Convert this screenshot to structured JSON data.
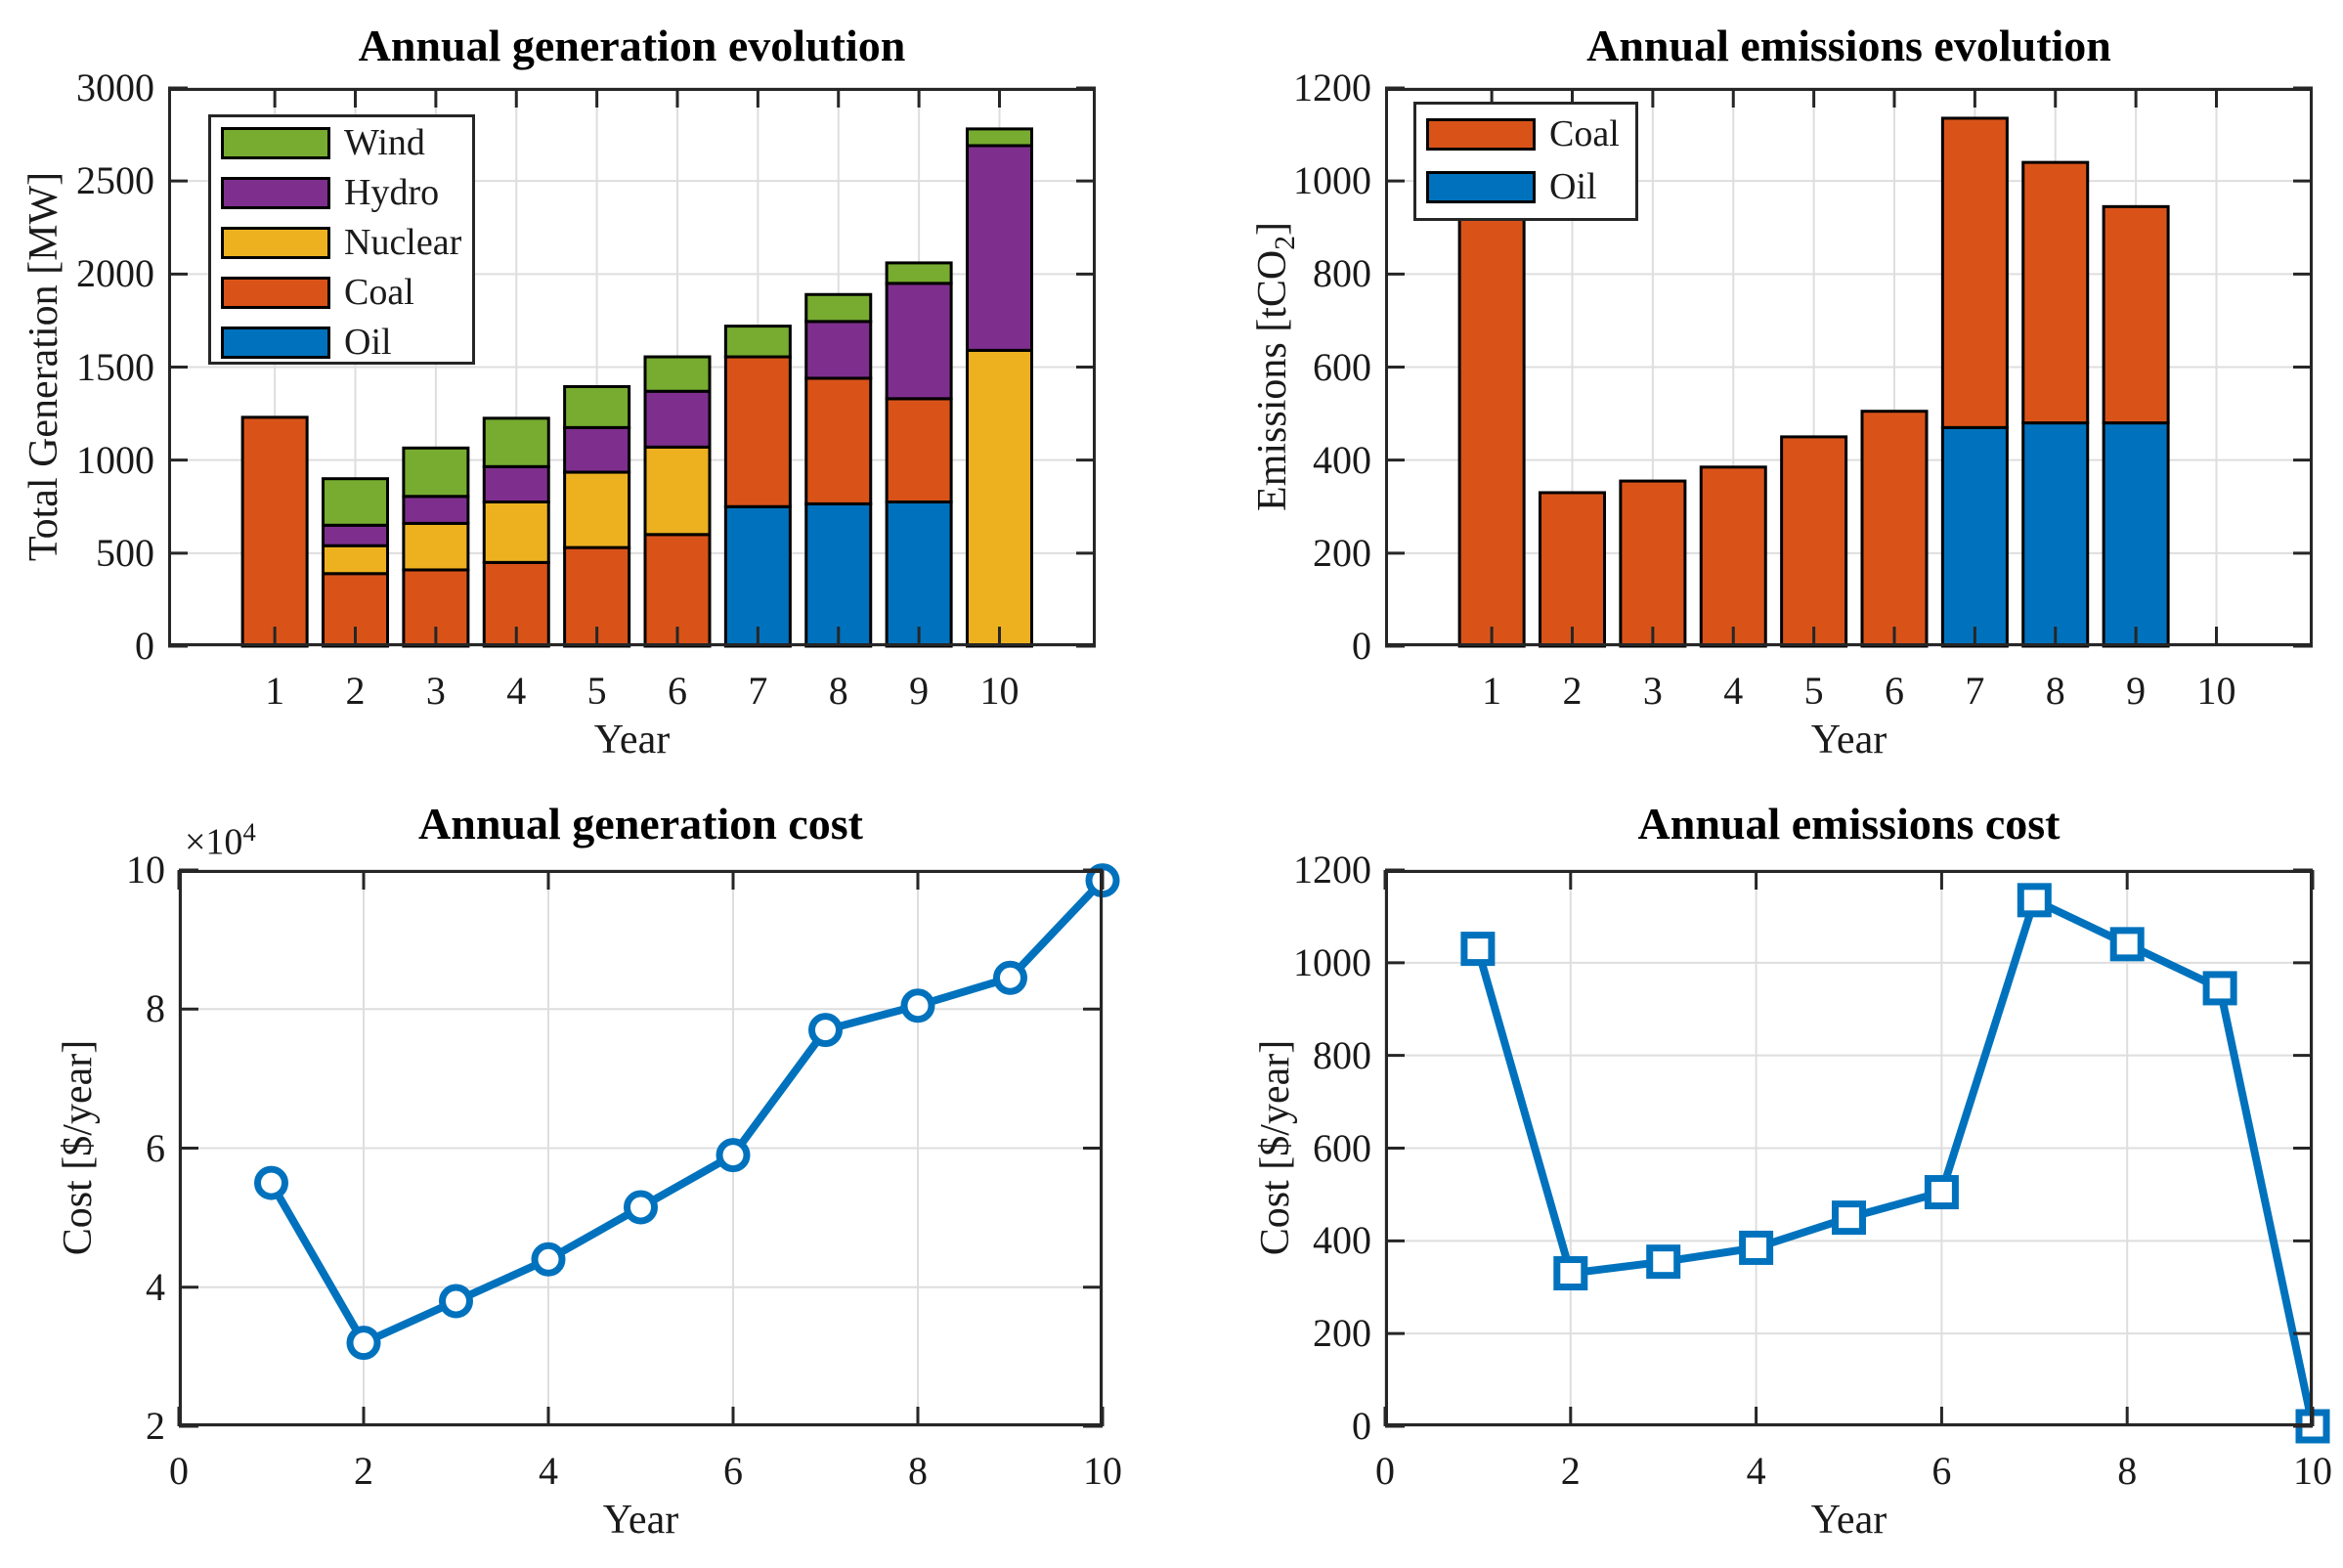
{
  "figure": {
    "background": "#ffffff"
  },
  "colors": {
    "oil": "#0072BD",
    "coal": "#D95319",
    "nuclear": "#EDB120",
    "hydro": "#7E2F8E",
    "wind": "#77AC30",
    "line": "#0072BD",
    "grid": "#DEDEDE",
    "axis": "#262626",
    "bar_edge": "#000000",
    "marker_fill": "#ffffff"
  },
  "chart_data": [
    {
      "type": "bar",
      "stacked": true,
      "title": "Annual generation evolution",
      "xlabel": "Year",
      "ylabel": "Total Generation [MW]",
      "ylabel_parts": [
        {
          "t": "Total Generation [MW]"
        }
      ],
      "categories": [
        "1",
        "2",
        "3",
        "4",
        "5",
        "6",
        "7",
        "8",
        "9",
        "10"
      ],
      "series": [
        {
          "name": "Oil",
          "color_key": "oil",
          "values": [
            0,
            0,
            0,
            0,
            0,
            0,
            750,
            765,
            775,
            0
          ]
        },
        {
          "name": "Coal",
          "color_key": "coal",
          "values": [
            1230,
            390,
            410,
            450,
            530,
            600,
            805,
            675,
            555,
            0
          ]
        },
        {
          "name": "Nuclear",
          "color_key": "nuclear",
          "values": [
            0,
            150,
            250,
            325,
            405,
            470,
            0,
            0,
            0,
            1590
          ]
        },
        {
          "name": "Hydro",
          "color_key": "hydro",
          "values": [
            0,
            110,
            145,
            190,
            240,
            300,
            0,
            305,
            620,
            1100
          ]
        },
        {
          "name": "Wind",
          "color_key": "wind",
          "values": [
            0,
            250,
            260,
            260,
            220,
            185,
            165,
            145,
            110,
            90
          ]
        }
      ],
      "totals": [
        1230,
        900,
        1065,
        1225,
        1395,
        1555,
        1720,
        1890,
        2060,
        2780
      ],
      "ylim": [
        0,
        3000
      ],
      "yticks": [
        0,
        500,
        1000,
        1500,
        2000,
        2500,
        3000
      ],
      "ytick_labels": [
        "0",
        "500",
        "1000",
        "1500",
        "2000",
        "2500",
        "3000"
      ],
      "grid": true,
      "legend": {
        "position": "upper-left",
        "entries": [
          "Wind",
          "Hydro",
          "Nuclear",
          "Coal",
          "Oil"
        ],
        "entry_color_keys": [
          "wind",
          "hydro",
          "nuclear",
          "coal",
          "oil"
        ]
      }
    },
    {
      "type": "bar",
      "stacked": true,
      "title": "Annual emissions evolution",
      "xlabel": "Year",
      "ylabel": "Emissions [tCO2]",
      "ylabel_parts": [
        {
          "t": "Emissions [tCO"
        },
        {
          "t": "2",
          "sub": true
        },
        {
          "t": "]"
        }
      ],
      "categories": [
        "1",
        "2",
        "3",
        "4",
        "5",
        "6",
        "7",
        "8",
        "9",
        "10"
      ],
      "series": [
        {
          "name": "Oil",
          "color_key": "oil",
          "values": [
            0,
            0,
            0,
            0,
            0,
            0,
            470,
            480,
            480,
            0
          ]
        },
        {
          "name": "Coal",
          "color_key": "coal",
          "values": [
            1030,
            330,
            355,
            385,
            450,
            505,
            665,
            560,
            465,
            0
          ]
        }
      ],
      "totals": [
        1030,
        330,
        355,
        385,
        450,
        505,
        1135,
        1040,
        945,
        0
      ],
      "ylim": [
        0,
        1200
      ],
      "yticks": [
        0,
        200,
        400,
        600,
        800,
        1000,
        1200
      ],
      "ytick_labels": [
        "0",
        "200",
        "400",
        "600",
        "800",
        "1000",
        "1200"
      ],
      "grid": true,
      "legend": {
        "position": "upper-left",
        "entries": [
          "Coal",
          "Oil"
        ],
        "entry_color_keys": [
          "coal",
          "oil"
        ]
      }
    },
    {
      "type": "line",
      "marker": "circle",
      "title": "Annual generation cost",
      "xlabel": "Year",
      "ylabel": "Cost [$/year]",
      "ylabel_parts": [
        {
          "t": "Cost [$/year]"
        }
      ],
      "x": [
        1,
        2,
        3,
        4,
        5,
        6,
        7,
        8,
        9,
        10
      ],
      "y": [
        55000,
        32000,
        38000,
        44000,
        51500,
        59000,
        77000,
        80500,
        84500,
        98500
      ],
      "xlim": [
        0,
        10
      ],
      "xticks": [
        0,
        2,
        4,
        6,
        8,
        10
      ],
      "xtick_labels": [
        "0",
        "2",
        "4",
        "6",
        "8",
        "10"
      ],
      "ylim": [
        20000,
        100000
      ],
      "yticks": [
        20000,
        40000,
        60000,
        80000,
        100000
      ],
      "ytick_labels": [
        "2",
        "4",
        "6",
        "8",
        "10"
      ],
      "exponent_parts": [
        {
          "t": "×10"
        },
        {
          "t": "4",
          "sup": true
        }
      ],
      "grid": true
    },
    {
      "type": "line",
      "marker": "square",
      "title": "Annual emissions cost",
      "xlabel": "Year",
      "ylabel": "Cost [$/year]",
      "ylabel_parts": [
        {
          "t": "Cost [$/year]"
        }
      ],
      "x": [
        1,
        2,
        3,
        4,
        5,
        6,
        7,
        8,
        9,
        10
      ],
      "y": [
        1030,
        330,
        355,
        385,
        450,
        505,
        1135,
        1040,
        945,
        0
      ],
      "xlim": [
        0,
        10
      ],
      "xticks": [
        0,
        2,
        4,
        6,
        8,
        10
      ],
      "xtick_labels": [
        "0",
        "2",
        "4",
        "6",
        "8",
        "10"
      ],
      "ylim": [
        0,
        1200
      ],
      "yticks": [
        0,
        200,
        400,
        600,
        800,
        1000,
        1200
      ],
      "ytick_labels": [
        "0",
        "200",
        "400",
        "600",
        "800",
        "1000",
        "1200"
      ],
      "grid": true
    }
  ]
}
